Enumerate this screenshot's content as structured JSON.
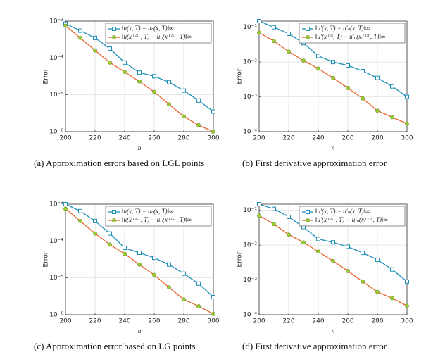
{
  "chart_data": [
    {
      "type": "line",
      "caption": "(a) Approximation errors based on LGL points",
      "xlabel": "n",
      "ylabel": "Error",
      "x": [
        200,
        210,
        220,
        230,
        240,
        250,
        260,
        270,
        280,
        290,
        300
      ],
      "series": [
        {
          "name": "‖u(x, T) − uₙ(x, T)‖∞",
          "color": "#1f8fb8",
          "marker": "square",
          "marker_color": "#1f8fb8",
          "values": [
            0.00085,
            0.00055,
            0.00035,
            0.00018,
            7.5e-05,
            4e-05,
            3.2e-05,
            2.2e-05,
            1.3e-05,
            7e-06,
            3.5e-06
          ]
        },
        {
          "name": "‖u(xᵢᴸᴳᴸ, T) − uₙ(xᵢᴸᴳᴸ, T)‖∞",
          "color": "#e8622b",
          "marker": "circle",
          "marker_color": "#9acd32",
          "values": [
            0.00075,
            0.00035,
            0.00016,
            7.5e-05,
            4.2e-05,
            2.3e-05,
            1.2e-05,
            5.5e-06,
            2.6e-06,
            1.5e-06,
            1e-06
          ]
        }
      ],
      "xlim": [
        200,
        300
      ],
      "xticks": [
        200,
        220,
        240,
        260,
        280,
        300
      ],
      "ylim": [
        1e-06,
        0.001
      ],
      "log_y": true,
      "yticks": [
        {
          "value": 1e-06,
          "label": "10⁻⁶"
        },
        {
          "value": 1e-05,
          "label": "10⁻⁵"
        },
        {
          "value": 0.0001,
          "label": "10⁻⁴"
        },
        {
          "value": 0.001,
          "label": "10⁻³"
        }
      ],
      "grid": true,
      "legend": "upper right"
    },
    {
      "type": "line",
      "caption": "(b) First derivative approximation error",
      "xlabel": "n",
      "ylabel": "Error",
      "x": [
        200,
        210,
        220,
        230,
        240,
        250,
        260,
        270,
        280,
        290,
        300
      ],
      "series": [
        {
          "name": "‖u′(x, T) − u′ₙ(x, T)‖∞",
          "color": "#1f8fb8",
          "marker": "square",
          "marker_color": "#1f8fb8",
          "values": [
            0.15,
            0.1,
            0.065,
            0.035,
            0.015,
            0.01,
            0.008,
            0.0055,
            0.0035,
            0.002,
            0.001
          ]
        },
        {
          "name": "‖u′(xᵢᴸᴳ, T) − u′ₙ(xᵢᴸᴳᴸ, T)‖∞",
          "color": "#e8622b",
          "marker": "circle",
          "marker_color": "#9acd32",
          "values": [
            0.07,
            0.04,
            0.02,
            0.011,
            0.0065,
            0.0035,
            0.0018,
            0.0009,
            0.0004,
            0.00026,
            0.00017
          ]
        }
      ],
      "xlim": [
        200,
        300
      ],
      "xticks": [
        200,
        220,
        240,
        260,
        280,
        300
      ],
      "ylim": [
        0.0001,
        0.15
      ],
      "log_y": true,
      "yticks": [
        {
          "value": 0.0001,
          "label": "10⁻⁴"
        },
        {
          "value": 0.001,
          "label": "10⁻³"
        },
        {
          "value": 0.01,
          "label": "10⁻²"
        },
        {
          "value": 0.1,
          "label": "10⁻¹"
        }
      ],
      "grid": true,
      "legend": "upper right"
    },
    {
      "type": "line",
      "caption": "(c) Approximation error based on LG points",
      "xlabel": "n",
      "ylabel": "Error",
      "x": [
        200,
        210,
        220,
        230,
        240,
        250,
        260,
        270,
        280,
        290,
        300
      ],
      "series": [
        {
          "name": "‖u(x, T) − uₙ(x, T)‖∞",
          "color": "#1f8fb8",
          "marker": "square",
          "marker_color": "#1f8fb8",
          "values": [
            0.001,
            0.00065,
            0.00035,
            0.00016,
            6.5e-05,
            4.8e-05,
            3.5e-05,
            2.3e-05,
            1.3e-05,
            7e-06,
            3e-06
          ]
        },
        {
          "name": "‖u(xᵢᴸᴳᴸ, T) − uₙ(xᵢᴸᴳᴸ, T)‖∞",
          "color": "#e8622b",
          "marker": "circle",
          "marker_color": "#9acd32",
          "values": [
            0.00075,
            0.00035,
            0.00016,
            8e-05,
            4.5e-05,
            2.3e-05,
            1.2e-05,
            5.5e-06,
            2.6e-06,
            1.7e-06,
            1.05e-06
          ]
        }
      ],
      "xlim": [
        200,
        300
      ],
      "xticks": [
        200,
        220,
        240,
        260,
        280,
        300
      ],
      "ylim": [
        1e-06,
        0.001
      ],
      "log_y": true,
      "yticks": [
        {
          "value": 1e-06,
          "label": "10⁻⁶"
        },
        {
          "value": 1e-05,
          "label": "10⁻⁵"
        },
        {
          "value": 0.0001,
          "label": "10⁻⁴"
        },
        {
          "value": 0.001,
          "label": "10⁻³"
        }
      ],
      "grid": true,
      "legend": "upper right"
    },
    {
      "type": "line",
      "caption": "(d) First derivative approximation error",
      "xlabel": "n",
      "ylabel": "Error",
      "x": [
        200,
        210,
        220,
        230,
        240,
        250,
        260,
        270,
        280,
        290,
        300
      ],
      "series": [
        {
          "name": "‖u′(x, T) − u′ₙ(x, T)‖∞",
          "color": "#1f8fb8",
          "marker": "square",
          "marker_color": "#1f8fb8",
          "values": [
            0.15,
            0.11,
            0.065,
            0.033,
            0.015,
            0.012,
            0.009,
            0.006,
            0.0038,
            0.002,
            0.0009
          ]
        },
        {
          "name": "‖u′(xᵢᴸᴳᴸ, T) − u′ₙ(xᵢᴸᴳᴸ, T)‖∞",
          "color": "#e8622b",
          "marker": "circle",
          "marker_color": "#9acd32",
          "values": [
            0.07,
            0.04,
            0.02,
            0.012,
            0.0065,
            0.0035,
            0.0018,
            0.0009,
            0.00045,
            0.0003,
            0.00018
          ]
        }
      ],
      "xlim": [
        200,
        300
      ],
      "xticks": [
        200,
        220,
        240,
        260,
        280,
        300
      ],
      "ylim": [
        0.0001,
        0.15
      ],
      "log_y": true,
      "yticks": [
        {
          "value": 0.0001,
          "label": "10⁻⁴"
        },
        {
          "value": 0.001,
          "label": "10⁻³"
        },
        {
          "value": 0.01,
          "label": "10⁻²"
        },
        {
          "value": 0.1,
          "label": "10⁻¹"
        }
      ],
      "grid": true,
      "legend": "upper right"
    }
  ]
}
